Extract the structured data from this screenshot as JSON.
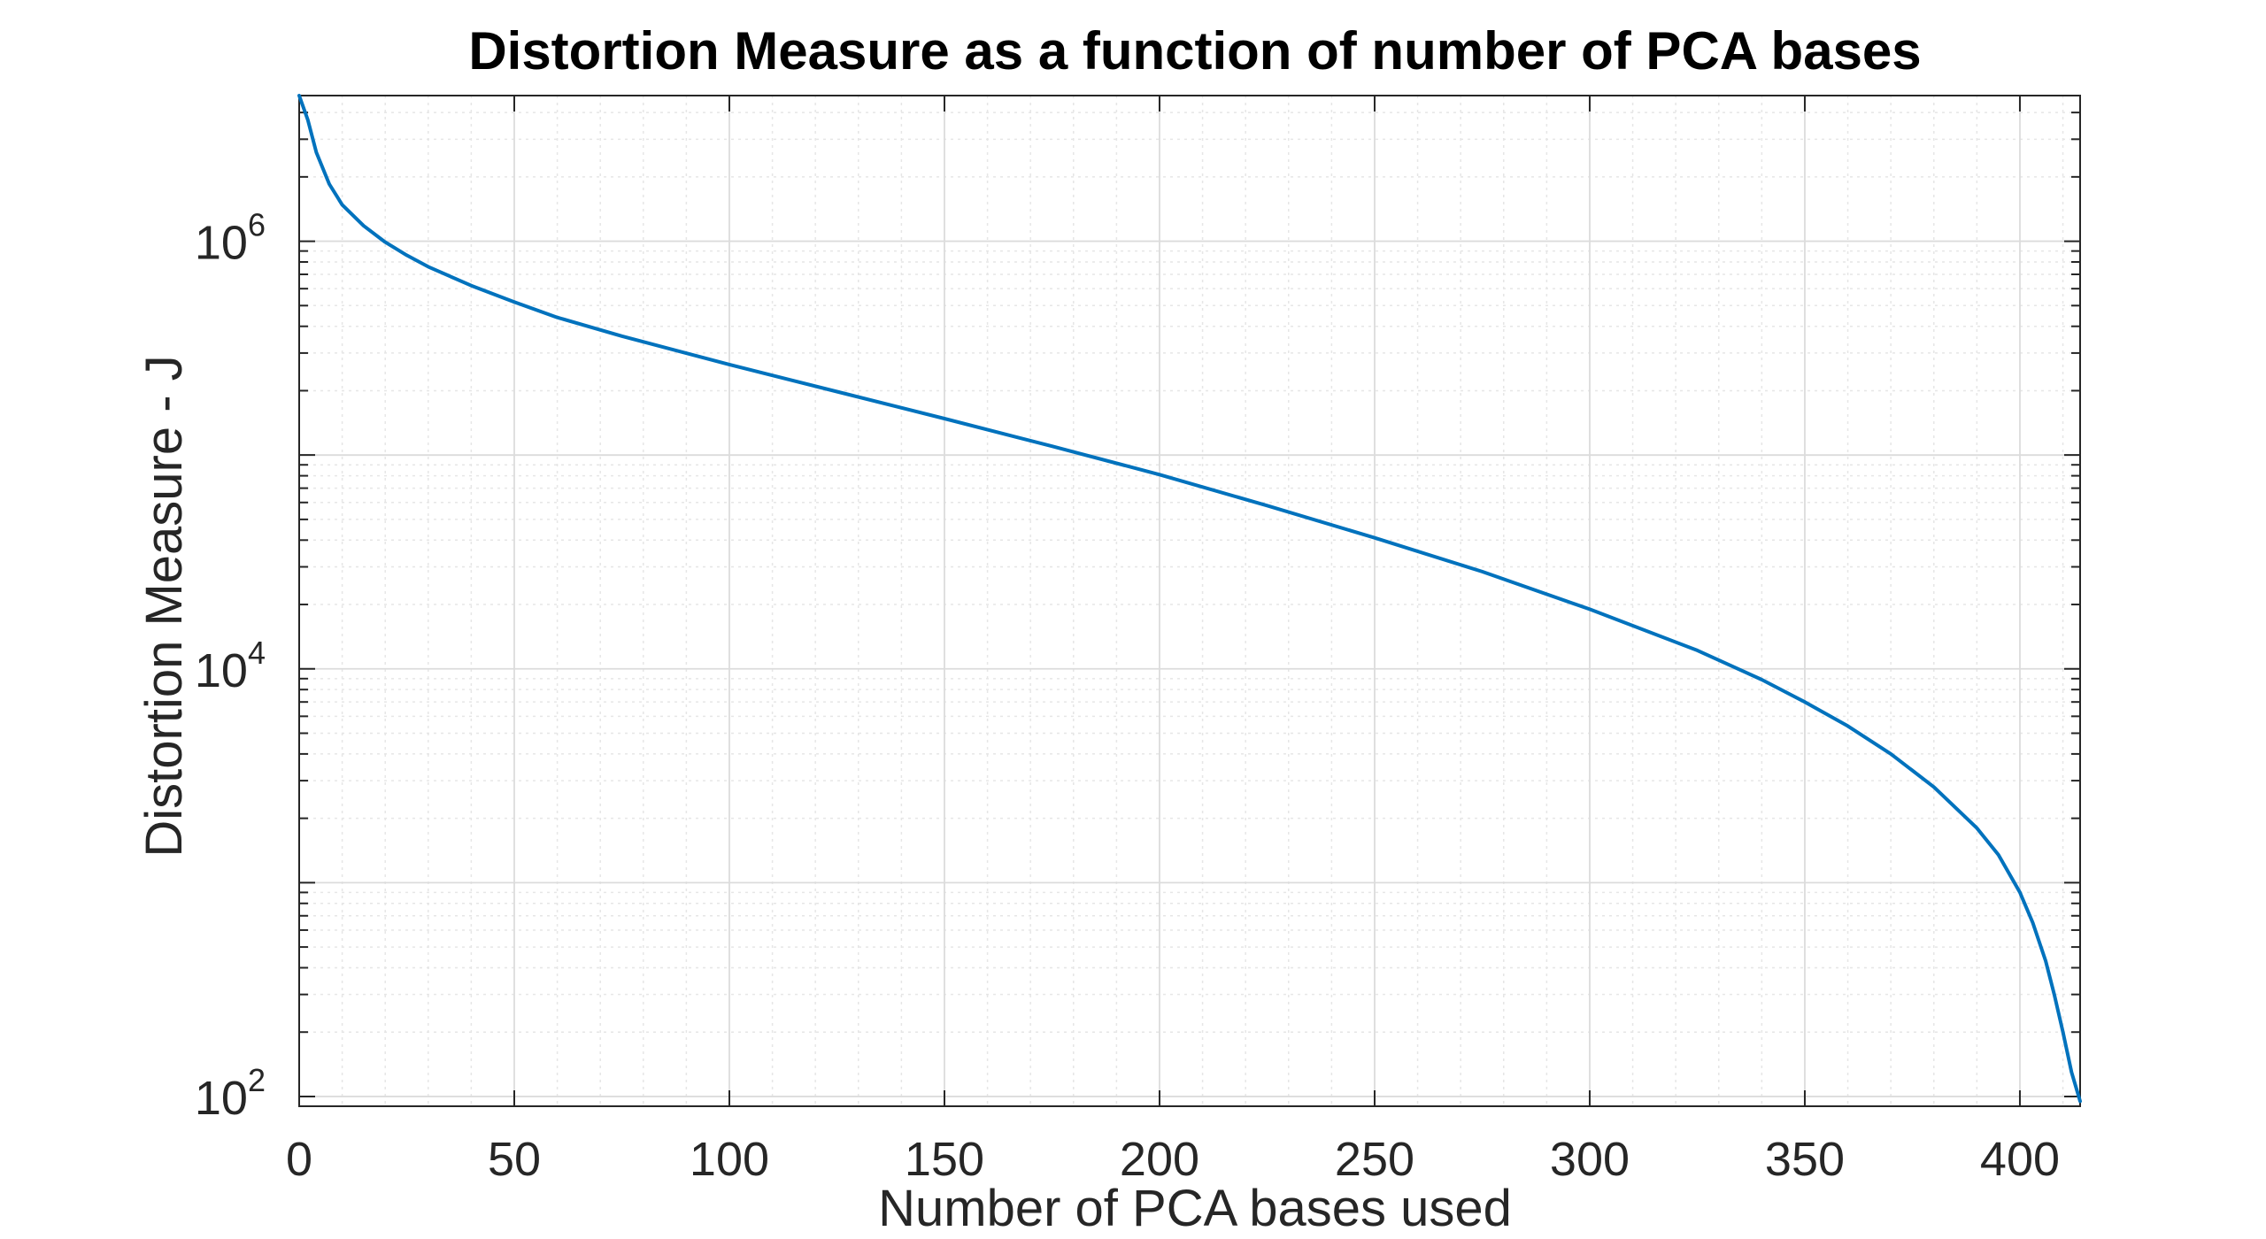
{
  "chart_data": {
    "type": "line",
    "title": "Distortion Measure as a function of number of PCA bases",
    "xlabel": "Number of PCA bases used",
    "ylabel": "Distortion Measure - J",
    "xlim": [
      0,
      414
    ],
    "ylim": [
      90,
      4800000
    ],
    "y_scale": "log",
    "grid": true,
    "minor_grid": true,
    "line_color": "#0072BD",
    "x_ticks": [
      0,
      50,
      100,
      150,
      200,
      250,
      300,
      350,
      400
    ],
    "y_ticks": [
      {
        "value": 100,
        "base": "10",
        "exponent": "2"
      },
      {
        "value": 10000,
        "base": "10",
        "exponent": "4"
      },
      {
        "value": 1000000,
        "base": "10",
        "exponent": "6"
      }
    ],
    "series": [
      {
        "x": [
          0,
          2,
          4,
          7,
          10,
          15,
          20,
          25,
          30,
          40,
          50,
          60,
          75,
          100,
          125,
          150,
          175,
          200,
          225,
          250,
          275,
          300,
          325,
          340,
          350,
          360,
          370,
          380,
          390,
          395,
          400,
          403,
          406,
          408,
          410,
          412,
          414
        ],
        "y": [
          4800000,
          3700000,
          2600000,
          1850000,
          1480000,
          1180000,
          990000,
          860000,
          760000,
          620000,
          520000,
          440000,
          360000,
          265000,
          198000,
          148000,
          110000,
          81000,
          58000,
          41000,
          28500,
          19000,
          12200,
          8900,
          7000,
          5400,
          4000,
          2800,
          1800,
          1350,
          900,
          650,
          430,
          300,
          200,
          130,
          95
        ]
      }
    ]
  }
}
